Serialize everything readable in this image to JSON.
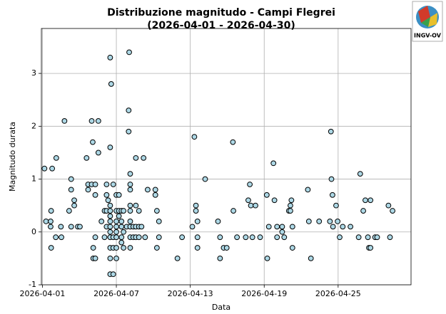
{
  "logo": "INGV-OV",
  "chart_data": {
    "type": "scatter",
    "title": "Distribuzione magnitudo - Campi Flegrei",
    "subtitle": "(2026-04-01 - 2026-04-30)",
    "x_label": "Data",
    "y_label": "Magnitudo durata",
    "color": "#add8e6",
    "edge_color": "#000000",
    "grid": true,
    "xlim": [
      "2026-03-31T22:00",
      "2026-04-30T22:00"
    ],
    "xticks": [
      "2026-04-01",
      "2026-04-07",
      "2026-04-13",
      "2026-04-19",
      "2026-04-25"
    ],
    "ylim": [
      -1,
      3.85
    ],
    "yticks": [
      -1,
      0,
      1,
      2,
      3
    ],
    "x": [
      "2026-04-01T04:00",
      "2026-04-01T07:00",
      "2026-04-01T16:00",
      "2026-04-01T16:00",
      "2026-04-01T17:00",
      "2026-04-01T17:00",
      "2026-04-01T19:00",
      "2026-04-02T02:00",
      "2026-04-02T03:00",
      "2026-04-02T12:00",
      "2026-04-02T13:00",
      "2026-04-02T19:00",
      "2026-04-03T04:00",
      "2026-04-03T08:00",
      "2026-04-03T08:00",
      "2026-04-03T08:00",
      "2026-04-03T14:00",
      "2026-04-03T14:00",
      "2026-04-03T21:00",
      "2026-04-04T01:00",
      "2026-04-04T14:00",
      "2026-04-04T17:00",
      "2026-04-04T17:00",
      "2026-04-05T00:00",
      "2026-04-05T02:00",
      "2026-04-05T00:00",
      "2026-04-05T03:00",
      "2026-04-05T03:00",
      "2026-04-05T07:00",
      "2026-04-05T07:00",
      "2026-04-05T07:00",
      "2026-04-05T07:00",
      "2026-04-05T13:00",
      "2026-04-05T13:00",
      "2026-04-05T19:00",
      "2026-04-06T01:00",
      "2026-04-06T01:00",
      "2026-04-06T05:00",
      "2026-04-06T05:00",
      "2026-04-06T05:00",
      "2026-04-06T05:00",
      "2026-04-06T08:00",
      "2026-04-06T12:00",
      "2026-04-06T14:00",
      "2026-04-06T12:00",
      "2026-04-06T12:00",
      "2026-04-06T12:00",
      "2026-04-06T12:00",
      "2026-04-06T12:00",
      "2026-04-06T12:00",
      "2026-04-06T12:00",
      "2026-04-06T12:00",
      "2026-04-06T12:00",
      "2026-04-06T12:00",
      "2026-04-06T12:00",
      "2026-04-06T18:00",
      "2026-04-06T18:00",
      "2026-04-06T18:00",
      "2026-04-06T18:00",
      "2026-04-07T00:00",
      "2026-04-07T00:00",
      "2026-04-07T00:00",
      "2026-04-07T00:00",
      "2026-04-07T00:00",
      "2026-04-07T00:00",
      "2026-04-07T00:00",
      "2026-04-07T00:00",
      "2026-04-07T05:00",
      "2026-04-07T05:00",
      "2026-04-07T05:00",
      "2026-04-07T10:00",
      "2026-04-07T10:00",
      "2026-04-07T10:00",
      "2026-04-07T10:00",
      "2026-04-07T10:00",
      "2026-04-07T14:00",
      "2026-04-07T14:00",
      "2026-04-07T14:00",
      "2026-04-07T20:00",
      "2026-04-08T00:00",
      "2026-04-08T00:00",
      "2026-04-08T01:00",
      "2026-04-08T03:00",
      "2026-04-08T03:00",
      "2026-04-08T03:00",
      "2026-04-08T03:00",
      "2026-04-08T03:00",
      "2026-04-08T03:00",
      "2026-04-08T03:00",
      "2026-04-08T03:00",
      "2026-04-08T03:00",
      "2026-04-08T09:00",
      "2026-04-08T09:00",
      "2026-04-08T14:00",
      "2026-04-08T14:00",
      "2026-04-08T14:00",
      "2026-04-08T14:00",
      "2026-04-08T20:00",
      "2026-04-08T20:00",
      "2026-04-08T20:00",
      "2026-04-09T01:00",
      "2026-04-09T05:00",
      "2026-04-09T08:00",
      "2026-04-09T13:00",
      "2026-04-10T04:00",
      "2026-04-10T04:00",
      "2026-04-10T07:00",
      "2026-04-10T07:00",
      "2026-04-10T11:00",
      "2026-04-10T11:00",
      "2026-04-11T23:00",
      "2026-04-12T08:00",
      "2026-04-13T04:00",
      "2026-04-13T08:00",
      "2026-04-13T11:00",
      "2026-04-13T11:00",
      "2026-04-13T14:00",
      "2026-04-13T14:00",
      "2026-04-13T14:00",
      "2026-04-14T05:00",
      "2026-04-15T06:00",
      "2026-04-15T10:00",
      "2026-04-15T10:00",
      "2026-04-15T17:00",
      "2026-04-15T23:00",
      "2026-04-16T11:00",
      "2026-04-16T12:00",
      "2026-04-16T19:00",
      "2026-04-17T12:00",
      "2026-04-17T17:00",
      "2026-04-17T20:00",
      "2026-04-17T22:00",
      "2026-04-18T01:00",
      "2026-04-18T07:00",
      "2026-04-18T16:00",
      "2026-04-19T05:00",
      "2026-04-19T06:00",
      "2026-04-19T09:00",
      "2026-04-19T18:00",
      "2026-04-19T20:00",
      "2026-04-20T01:00",
      "2026-04-20T01:00",
      "2026-04-20T11:00",
      "2026-04-20T11:00",
      "2026-04-20T15:00",
      "2026-04-21T00:00",
      "2026-04-21T03:00",
      "2026-04-21T03:00",
      "2026-04-21T05:00",
      "2026-04-21T07:00",
      "2026-04-21T07:00",
      "2026-04-22T13:00",
      "2026-04-22T15:00",
      "2026-04-22T19:00",
      "2026-04-23T11:00",
      "2026-04-24T08:00",
      "2026-04-24T10:00",
      "2026-04-24T11:00",
      "2026-04-24T13:00",
      "2026-04-24T14:00",
      "2026-04-24T20:00",
      "2026-04-24T23:00",
      "2026-04-25T03:00",
      "2026-04-25T09:00",
      "2026-04-26T00:00",
      "2026-04-26T16:00",
      "2026-04-26T19:00",
      "2026-04-27T01:00",
      "2026-04-27T05:00",
      "2026-04-27T10:00",
      "2026-04-27T12:00",
      "2026-04-27T15:00",
      "2026-04-27T15:00",
      "2026-04-28T00:00",
      "2026-04-28T04:00",
      "2026-04-29T02:00",
      "2026-04-29T05:00",
      "2026-04-29T10:00"
    ],
    "values": [
      1.2,
      0.2,
      0.1,
      0.2,
      0.4,
      -0.3,
      1.2,
      -0.1,
      1.4,
      0.1,
      -0.1,
      2.1,
      0.4,
      1.0,
      0.8,
      0.1,
      0.6,
      0.5,
      0.1,
      0.1,
      1.4,
      0.8,
      0.9,
      2.1,
      1.7,
      0.9,
      -0.3,
      -0.5,
      0.7,
      0.9,
      -0.1,
      -0.5,
      2.1,
      1.5,
      0.2,
      0.4,
      -0.1,
      0.9,
      0.7,
      0.4,
      0.1,
      0.6,
      3.3,
      2.8,
      1.6,
      0.5,
      0.4,
      0.3,
      0.2,
      0.1,
      0.0,
      -0.1,
      -0.3,
      -0.5,
      -0.8,
      -0.8,
      0.9,
      -0.1,
      -0.3,
      -0.3,
      -0.5,
      0.1,
      0.0,
      -0.1,
      0.2,
      0.4,
      0.7,
      0.7,
      0.4,
      0.3,
      0.4,
      0.2,
      0.1,
      -0.1,
      -0.2,
      0.4,
      0.0,
      -0.3,
      0.1,
      2.3,
      1.9,
      3.4,
      1.1,
      0.9,
      0.8,
      0.5,
      0.4,
      0.2,
      0.1,
      -0.1,
      -0.3,
      0.1,
      -0.1,
      1.4,
      0.5,
      0.1,
      -0.1,
      0.4,
      0.1,
      -0.1,
      0.1,
      1.4,
      -0.1,
      0.8,
      0.7,
      0.8,
      0.4,
      -0.3,
      0.2,
      -0.1,
      -0.5,
      -0.1,
      0.1,
      1.8,
      0.5,
      0.4,
      0.2,
      -0.1,
      -0.3,
      1.0,
      0.2,
      -0.1,
      -0.5,
      -0.3,
      -0.3,
      1.7,
      0.4,
      -0.1,
      -0.1,
      0.6,
      0.9,
      0.5,
      -0.1,
      0.5,
      -0.1,
      0.7,
      -0.5,
      0.1,
      1.3,
      0.6,
      0.1,
      -0.1,
      0.1,
      0.0,
      -0.1,
      0.4,
      0.5,
      0.4,
      0.6,
      0.1,
      -0.3,
      0.8,
      0.2,
      -0.5,
      0.2,
      0.2,
      1.9,
      1.0,
      0.7,
      0.1,
      0.5,
      0.2,
      -0.1,
      0.1,
      0.1,
      -0.1,
      1.1,
      0.4,
      0.6,
      -0.1,
      -0.3,
      0.6,
      -0.3,
      -0.1,
      -0.1,
      0.5,
      -0.1,
      0.4
    ]
  }
}
